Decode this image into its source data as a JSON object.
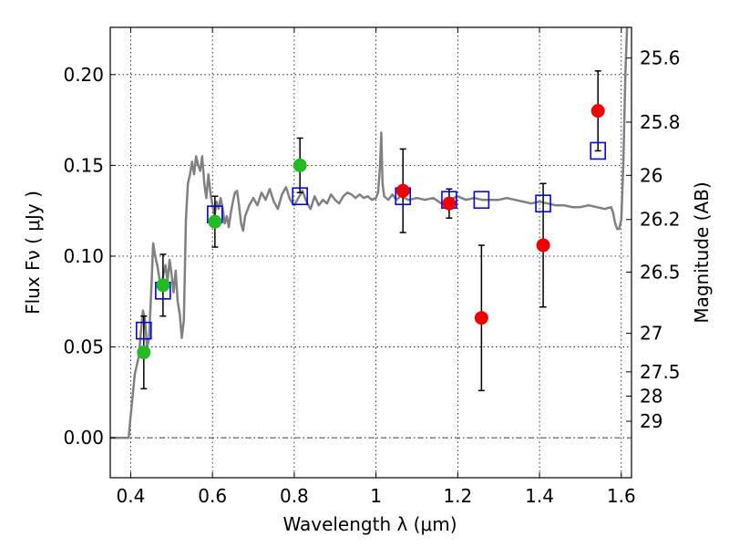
{
  "chart_data": {
    "type": "scatter",
    "xlabel": "Wavelength  λ (μm)",
    "ylabel": "Flux  Fν  ( μJy )",
    "ylabel_right": "Magnitude (AB)",
    "xlim": [
      0.35,
      1.625
    ],
    "ylim": [
      -0.022,
      0.226
    ],
    "grid": true,
    "x_ticks": [
      0.4,
      0.6,
      0.8,
      1.0,
      1.2,
      1.4,
      1.6
    ],
    "x_tick_labels": [
      "0.4",
      "0.6",
      "0.8",
      "1",
      "1.2",
      "1.4",
      "1.6"
    ],
    "y_ticks": [
      0.0,
      0.05,
      0.1,
      0.15,
      0.2
    ],
    "y_tick_labels": [
      "0.00",
      "0.05",
      "0.10",
      "0.15",
      "0.20"
    ],
    "mag_ticks": [
      {
        "label": "25.6",
        "flux": 0.2091
      },
      {
        "label": "25.8",
        "flux": 0.1738
      },
      {
        "label": "26",
        "flux": 0.1445
      },
      {
        "label": "26.2",
        "flux": 0.1202
      },
      {
        "label": "26.5",
        "flux": 0.0912
      },
      {
        "label": "27",
        "flux": 0.0575
      },
      {
        "label": "27.5",
        "flux": 0.0363
      },
      {
        "label": "28",
        "flux": 0.0229
      },
      {
        "label": "29",
        "flux": 0.0091
      }
    ],
    "colors": {
      "model": "#808080",
      "green": "#22bb22",
      "red": "#ee0000",
      "box": "#0000ee",
      "errorbar": "#000000",
      "grid": "#000000"
    },
    "series": [
      {
        "name": "model_spectrum",
        "style": "line",
        "points": [
          [
            0.35,
            0.0
          ],
          [
            0.38,
            0.0
          ],
          [
            0.395,
            0.0
          ],
          [
            0.4,
            0.012
          ],
          [
            0.41,
            0.035
          ],
          [
            0.42,
            0.045
          ],
          [
            0.425,
            0.058
          ],
          [
            0.43,
            0.07
          ],
          [
            0.435,
            0.065
          ],
          [
            0.44,
            0.05
          ],
          [
            0.445,
            0.055
          ],
          [
            0.45,
            0.08
          ],
          [
            0.455,
            0.107
          ],
          [
            0.46,
            0.1
          ],
          [
            0.465,
            0.095
          ],
          [
            0.47,
            0.088
          ],
          [
            0.475,
            0.082
          ],
          [
            0.48,
            0.09
          ],
          [
            0.485,
            0.095
          ],
          [
            0.49,
            0.086
          ],
          [
            0.495,
            0.098
          ],
          [
            0.5,
            0.09
          ],
          [
            0.505,
            0.08
          ],
          [
            0.51,
            0.092
          ],
          [
            0.515,
            0.075
          ],
          [
            0.52,
            0.068
          ],
          [
            0.525,
            0.055
          ],
          [
            0.53,
            0.065
          ],
          [
            0.535,
            0.12
          ],
          [
            0.54,
            0.14
          ],
          [
            0.545,
            0.145
          ],
          [
            0.55,
            0.152
          ],
          [
            0.555,
            0.145
          ],
          [
            0.56,
            0.155
          ],
          [
            0.565,
            0.15
          ],
          [
            0.57,
            0.147
          ],
          [
            0.575,
            0.155
          ],
          [
            0.58,
            0.14
          ],
          [
            0.585,
            0.132
          ],
          [
            0.59,
            0.145
          ],
          [
            0.595,
            0.135
          ],
          [
            0.6,
            0.128
          ],
          [
            0.605,
            0.122
          ],
          [
            0.61,
            0.13
          ],
          [
            0.615,
            0.126
          ],
          [
            0.62,
            0.132
          ],
          [
            0.625,
            0.126
          ],
          [
            0.63,
            0.118
          ],
          [
            0.635,
            0.122
          ],
          [
            0.64,
            0.116
          ],
          [
            0.645,
            0.124
          ],
          [
            0.65,
            0.13
          ],
          [
            0.655,
            0.135
          ],
          [
            0.66,
            0.136
          ],
          [
            0.665,
            0.128
          ],
          [
            0.67,
            0.118
          ],
          [
            0.675,
            0.114
          ],
          [
            0.68,
            0.122
          ],
          [
            0.69,
            0.128
          ],
          [
            0.7,
            0.132
          ],
          [
            0.71,
            0.128
          ],
          [
            0.72,
            0.135
          ],
          [
            0.73,
            0.131
          ],
          [
            0.74,
            0.137
          ],
          [
            0.75,
            0.13
          ],
          [
            0.76,
            0.126
          ],
          [
            0.77,
            0.134
          ],
          [
            0.78,
            0.138
          ],
          [
            0.79,
            0.131
          ],
          [
            0.8,
            0.128
          ],
          [
            0.81,
            0.132
          ],
          [
            0.82,
            0.136
          ],
          [
            0.83,
            0.13
          ],
          [
            0.84,
            0.126
          ],
          [
            0.85,
            0.133
          ],
          [
            0.86,
            0.128
          ],
          [
            0.87,
            0.131
          ],
          [
            0.88,
            0.129
          ],
          [
            0.89,
            0.134
          ],
          [
            0.9,
            0.131
          ],
          [
            0.91,
            0.129
          ],
          [
            0.92,
            0.133
          ],
          [
            0.93,
            0.135
          ],
          [
            0.94,
            0.134
          ],
          [
            0.95,
            0.132
          ],
          [
            0.96,
            0.134
          ],
          [
            0.97,
            0.132
          ],
          [
            0.98,
            0.133
          ],
          [
            0.99,
            0.131
          ],
          [
            1.0,
            0.132
          ],
          [
            1.005,
            0.135
          ],
          [
            1.01,
            0.15
          ],
          [
            1.013,
            0.168
          ],
          [
            1.016,
            0.14
          ],
          [
            1.02,
            0.133
          ],
          [
            1.03,
            0.131
          ],
          [
            1.04,
            0.134
          ],
          [
            1.05,
            0.131
          ],
          [
            1.06,
            0.133
          ],
          [
            1.08,
            0.131
          ],
          [
            1.1,
            0.132
          ],
          [
            1.12,
            0.131
          ],
          [
            1.14,
            0.132
          ],
          [
            1.16,
            0.129
          ],
          [
            1.18,
            0.131
          ],
          [
            1.2,
            0.133
          ],
          [
            1.22,
            0.131
          ],
          [
            1.24,
            0.132
          ],
          [
            1.26,
            0.131
          ],
          [
            1.28,
            0.131
          ],
          [
            1.3,
            0.131
          ],
          [
            1.32,
            0.132
          ],
          [
            1.34,
            0.131
          ],
          [
            1.36,
            0.13
          ],
          [
            1.38,
            0.129
          ],
          [
            1.4,
            0.13
          ],
          [
            1.42,
            0.129
          ],
          [
            1.44,
            0.128
          ],
          [
            1.46,
            0.128
          ],
          [
            1.48,
            0.127
          ],
          [
            1.5,
            0.127
          ],
          [
            1.52,
            0.128
          ],
          [
            1.54,
            0.127
          ],
          [
            1.56,
            0.126
          ],
          [
            1.575,
            0.127
          ],
          [
            1.58,
            0.124
          ],
          [
            1.585,
            0.118
          ],
          [
            1.59,
            0.115
          ],
          [
            1.595,
            0.115
          ],
          [
            1.6,
            0.12
          ],
          [
            1.605,
            0.15
          ],
          [
            1.61,
            0.2
          ],
          [
            1.614,
            0.226
          ]
        ]
      },
      {
        "name": "green_observed",
        "style": "circle",
        "points": [
          {
            "x": 0.432,
            "y": 0.047,
            "err": 0.02
          },
          {
            "x": 0.479,
            "y": 0.084,
            "err": 0.017
          },
          {
            "x": 0.606,
            "y": 0.119,
            "err": 0.014
          },
          {
            "x": 0.814,
            "y": 0.15,
            "err": 0.015
          }
        ]
      },
      {
        "name": "red_observed",
        "style": "circle",
        "points": [
          {
            "x": 1.066,
            "y": 0.136,
            "err": 0.023
          },
          {
            "x": 1.179,
            "y": 0.129,
            "err": 0.008
          },
          {
            "x": 1.258,
            "y": 0.066,
            "err": 0.04
          },
          {
            "x": 1.409,
            "y": 0.106,
            "err": 0.034
          },
          {
            "x": 1.543,
            "y": 0.18,
            "err": 0.022
          }
        ]
      },
      {
        "name": "model_synthetic",
        "style": "square",
        "points": [
          {
            "x": 0.432,
            "y": 0.059
          },
          {
            "x": 0.479,
            "y": 0.081
          },
          {
            "x": 0.606,
            "y": 0.123
          },
          {
            "x": 0.814,
            "y": 0.133
          },
          {
            "x": 1.066,
            "y": 0.133
          },
          {
            "x": 1.179,
            "y": 0.131
          },
          {
            "x": 1.258,
            "y": 0.131
          },
          {
            "x": 1.409,
            "y": 0.129
          },
          {
            "x": 1.543,
            "y": 0.158
          }
        ]
      }
    ]
  }
}
